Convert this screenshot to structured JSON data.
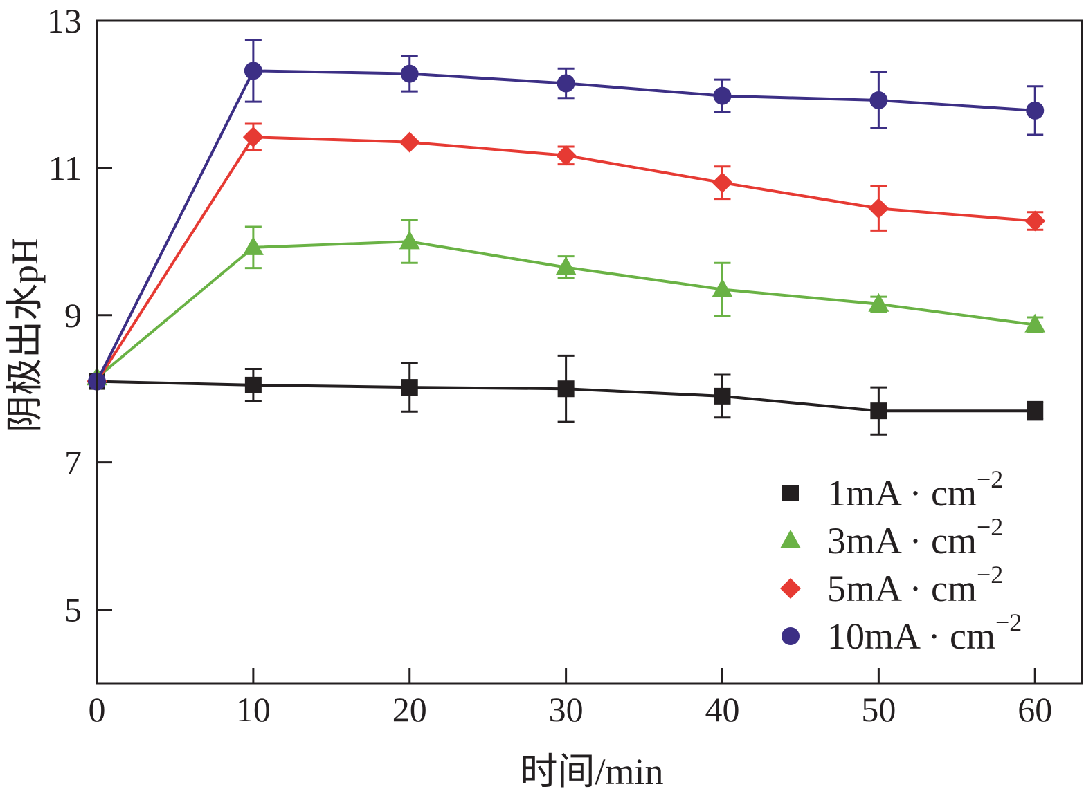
{
  "chart_data": {
    "type": "line",
    "title": "",
    "xlabel": "时间/min",
    "ylabel": "阴极出水pH",
    "xlim": [
      0,
      63
    ],
    "ylim": [
      4,
      13
    ],
    "xticks": [
      0,
      10,
      20,
      30,
      40,
      50,
      60
    ],
    "yticks": [
      5,
      7,
      9,
      11,
      13
    ],
    "grid": false,
    "legend_position": "bottom-right",
    "x": [
      0,
      10,
      20,
      30,
      40,
      50,
      60
    ],
    "series": [
      {
        "name": "1mA·cm⁻²",
        "legend_main": "1mA · cm",
        "legend_sup": "−2",
        "color": "#231f20",
        "marker": "square",
        "values": [
          8.1,
          8.05,
          8.02,
          8.0,
          7.9,
          7.7,
          7.7
        ],
        "errors": [
          0,
          0.22,
          0.33,
          0.45,
          0.29,
          0.32,
          0.12
        ]
      },
      {
        "name": "3mA·cm⁻²",
        "legend_main": "3mA · cm",
        "legend_sup": "−2",
        "color": "#6ab245",
        "marker": "triangle",
        "values": [
          8.15,
          9.92,
          10.0,
          9.65,
          9.35,
          9.15,
          8.87
        ],
        "errors": [
          0,
          0.28,
          0.29,
          0.15,
          0.36,
          0.1,
          0.1
        ]
      },
      {
        "name": "5mA·cm⁻²",
        "legend_main": "5mA · cm",
        "legend_sup": "−2",
        "color": "#e63a33",
        "marker": "diamond",
        "values": [
          8.1,
          11.42,
          11.35,
          11.17,
          10.8,
          10.45,
          10.28
        ],
        "errors": [
          0,
          0.18,
          0,
          0.12,
          0.22,
          0.3,
          0.12
        ]
      },
      {
        "name": "10mA·cm⁻²",
        "legend_main": "10mA · cm",
        "legend_sup": "−2",
        "color": "#3c2f85",
        "marker": "circle",
        "values": [
          8.1,
          12.32,
          12.28,
          12.15,
          11.98,
          11.92,
          11.78
        ],
        "errors": [
          0,
          0.42,
          0.24,
          0.2,
          0.22,
          0.38,
          0.33
        ]
      }
    ]
  }
}
